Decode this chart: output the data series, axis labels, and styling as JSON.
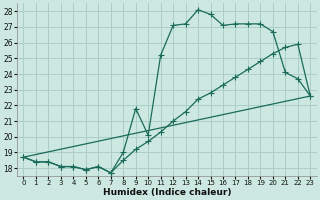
{
  "xlabel": "Humidex (Indice chaleur)",
  "bg_color": "#cce8e0",
  "grid_color": "#aacfc8",
  "line_color": "#1a6b5a",
  "xlim": [
    -0.5,
    23.5
  ],
  "ylim": [
    17.5,
    28.5
  ],
  "xticks": [
    0,
    1,
    2,
    3,
    4,
    5,
    6,
    7,
    8,
    9,
    10,
    11,
    12,
    13,
    14,
    15,
    16,
    17,
    18,
    19,
    20,
    21,
    22,
    23
  ],
  "yticks": [
    18,
    19,
    20,
    21,
    22,
    23,
    24,
    25,
    26,
    27,
    28
  ],
  "line1_x": [
    0,
    1,
    2,
    3,
    4,
    5,
    6,
    7,
    8,
    9,
    10,
    11,
    12,
    13,
    14,
    15,
    16,
    17,
    18,
    19,
    20,
    21,
    22,
    23
  ],
  "line1_y": [
    18.7,
    18.4,
    18.4,
    18.1,
    18.1,
    17.9,
    18.1,
    17.7,
    19.0,
    21.8,
    20.1,
    25.2,
    27.1,
    27.2,
    28.1,
    27.8,
    27.1,
    27.2,
    27.2,
    27.2,
    26.7,
    24.1,
    23.7,
    22.6
  ],
  "line2_x": [
    0,
    1,
    2,
    3,
    4,
    5,
    6,
    7,
    8,
    9,
    10,
    11,
    12,
    13,
    14,
    15,
    16,
    17,
    18,
    19,
    20,
    21,
    22,
    23
  ],
  "line2_y": [
    18.7,
    18.4,
    18.4,
    18.1,
    18.1,
    17.9,
    18.1,
    17.7,
    18.5,
    19.2,
    19.7,
    20.3,
    21.0,
    21.6,
    22.4,
    22.8,
    23.3,
    23.8,
    24.3,
    24.8,
    25.3,
    25.7,
    25.9,
    22.6
  ],
  "line3_x": [
    0,
    23
  ],
  "line3_y": [
    18.7,
    22.6
  ]
}
